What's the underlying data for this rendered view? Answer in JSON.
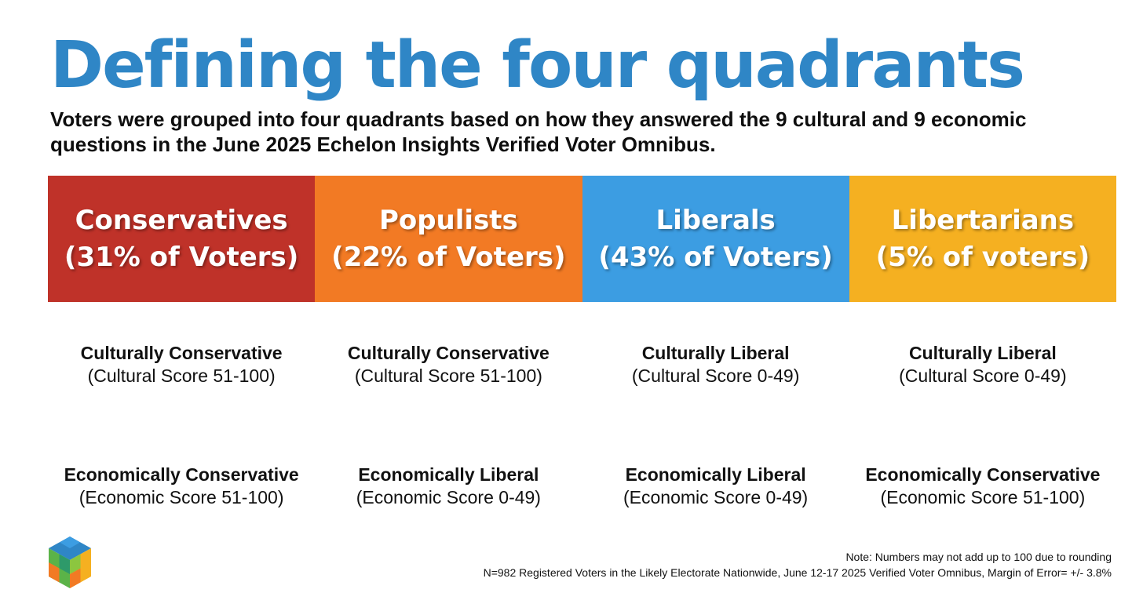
{
  "title": "Defining the four quadrants",
  "subtitle": "Voters were grouped into four quadrants based on how they answered the 9 cultural and 9 economic questions in the June 2025 Echelon Insights Verified Voter Omnibus.",
  "quadrants": [
    {
      "name": "Conservatives",
      "share": "(31% of Voters)",
      "color": "#bf3229",
      "cultural": {
        "label": "Culturally Conservative",
        "score": "(Cultural Score 51-100)"
      },
      "economic": {
        "label": "Economically Conservative",
        "score": "(Economic Score 51-100)"
      }
    },
    {
      "name": "Populists",
      "share": "(22% of Voters)",
      "color": "#f27a24",
      "cultural": {
        "label": "Culturally Conservative",
        "score": "(Cultural Score 51-100)"
      },
      "economic": {
        "label": "Economically Liberal",
        "score": "(Economic Score 0-49)"
      }
    },
    {
      "name": "Liberals",
      "share": "(43% of Voters)",
      "color": "#3c9de2",
      "cultural": {
        "label": "Culturally Liberal",
        "score": "(Cultural Score 0-49)"
      },
      "economic": {
        "label": "Economically Liberal",
        "score": "(Economic Score 0-49)"
      }
    },
    {
      "name": "Libertarians",
      "share": "(5% of voters)",
      "color": "#f5b021",
      "cultural": {
        "label": "Culturally Liberal",
        "score": "(Cultural Score 0-49)"
      },
      "economic": {
        "label": "Economically Conservative",
        "score": "(Economic Score 51-100)"
      }
    }
  ],
  "notes": {
    "rounding": "Note: Numbers may not add up to 100 due to rounding",
    "methodology": "N=982 Registered Voters in the Likely Electorate Nationwide, June 12-17 2025 Verified Voter Omnibus, Margin of Error= +/- 3.8%"
  },
  "logo": {
    "icon": "echelon-cube-logo-icon",
    "colors": [
      "#2f86c6",
      "#3c9de2",
      "#5bb348",
      "#f27a24",
      "#f5b021"
    ]
  }
}
